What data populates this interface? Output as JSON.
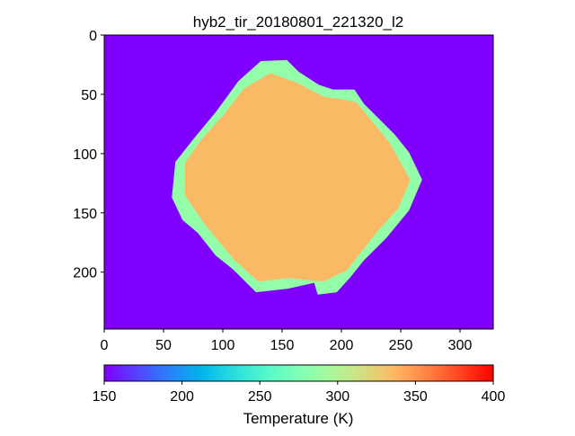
{
  "chart_data": {
    "type": "heatmap",
    "title": "hyb2_tir_20180801_221320_l2",
    "colormap": "rainbow",
    "xlim": [
      0,
      328
    ],
    "ylim": [
      248,
      0
    ],
    "xticks": [
      0,
      50,
      100,
      150,
      200,
      250,
      300
    ],
    "yticks": [
      0,
      50,
      100,
      150,
      200
    ],
    "background_value": 150,
    "regions": [
      {
        "x": [
          132,
          154,
          164,
          181,
          193,
          211,
          219,
          245,
          257,
          268,
          257,
          238,
          219,
          207,
          196,
          180,
          177,
          155,
          128,
          109,
          94,
          79,
          66,
          57,
          60,
          75,
          94,
          113
        ],
        "y": [
          22,
          21,
          31,
          42,
          46,
          46,
          58,
          84,
          99,
          122,
          148,
          171,
          190,
          205,
          217,
          219,
          209,
          214,
          217,
          198,
          186,
          167,
          156,
          137,
          107,
          88,
          65,
          39
        ],
        "value": 285
      },
      {
        "x": [
          140,
          162,
          185,
          212,
          240,
          258,
          248,
          230,
          205,
          185,
          155,
          130,
          110,
          85,
          68,
          68,
          82,
          100,
          118
        ],
        "y": [
          32,
          40,
          52,
          56,
          90,
          122,
          146,
          166,
          198,
          208,
          205,
          208,
          190,
          160,
          135,
          108,
          88,
          68,
          45
        ],
        "value": 335
      }
    ],
    "colorbar": {
      "label": "Temperature (K)",
      "lim": [
        150,
        400
      ],
      "ticks": [
        150,
        200,
        250,
        300,
        350,
        400
      ]
    }
  }
}
